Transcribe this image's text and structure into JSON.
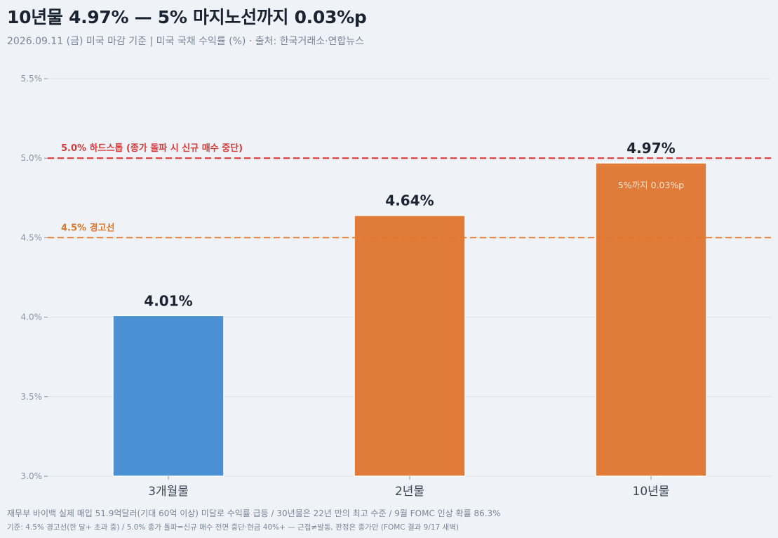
{
  "title": "10년물 4.97% — 5% 마지노선까지 0.03%p",
  "subtitle": "2026.09.11 (금) 미국 마감 기준  |  미국 국채 수익률 (%)  ·  출처: 한국거래소·연합뉴스",
  "footnote_1": "재무부 바이백 실제 매입 51.9억달러(기대 60억 이상) 미달로 수익률 급등 / 30년물은 22년 만의 최고 수준 / 9월 FOMC 인상 확률 86.3%",
  "footnote_2": "기준: 4.5% 경고선(한 달+ 초과 중) / 5.0% 종가 돌파=신규 매수 전면 중단·현금 40%+ — 근접≠발동, 판정은 종가만 (FOMC 결과 9/17 새벽)",
  "chart_data": {
    "type": "bar",
    "title": "10년물 4.97% — 5% 마지노선까지 0.03%p",
    "ylabel": "미국 국채 수익률 (%)",
    "categories": [
      "3개월물",
      "2년물",
      "10년물"
    ],
    "values": [
      4.01,
      4.64,
      4.97
    ],
    "value_labels": [
      "4.01%",
      "4.64%",
      "4.97%"
    ],
    "bar_colors": [
      "#4a90d2",
      "#e07b3a",
      "#e07b3a"
    ],
    "ylim": [
      3.0,
      5.5
    ],
    "yticks": [
      3.0,
      3.5,
      4.0,
      4.5,
      5.0,
      5.5
    ],
    "ytick_labels": [
      "3.0%",
      "3.5%",
      "4.0%",
      "4.5%",
      "5.0%",
      "5.5%"
    ],
    "grid": true,
    "reference_lines": [
      {
        "value": 5.0,
        "label": "5.0% 하드스톱 (종가 돌파 시 신규 매수 중단)",
        "color": "#d93b3b"
      },
      {
        "value": 4.5,
        "label": "4.5% 경고선",
        "color": "#e0762a"
      }
    ],
    "annotations": [
      {
        "category": "10년물",
        "text": "5%까지 0.03%p"
      }
    ]
  }
}
